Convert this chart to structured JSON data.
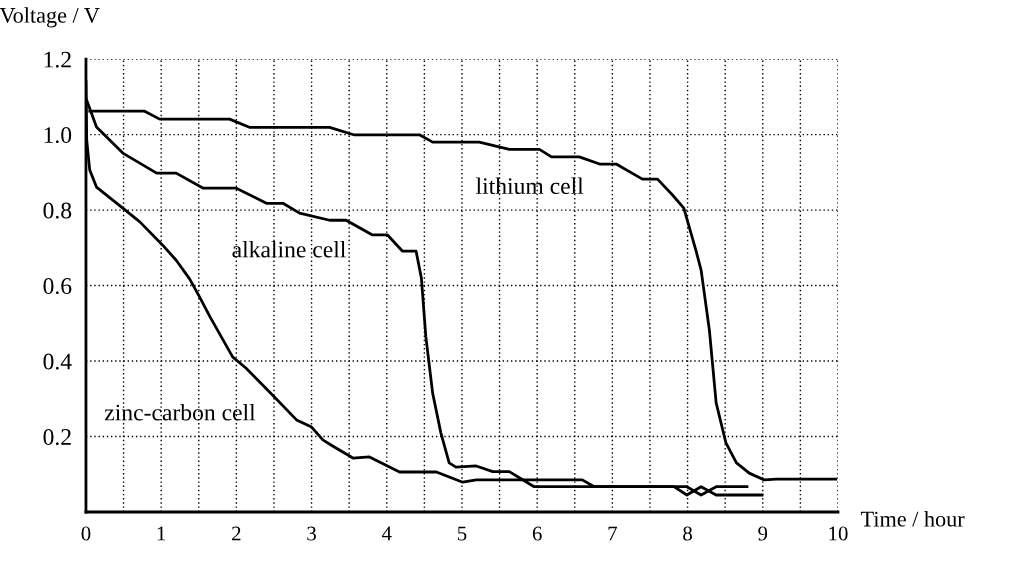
{
  "chart_data": {
    "type": "line",
    "xlabel": "Time / hour",
    "ylabel": "Voltage / V",
    "xlim": [
      0,
      10
    ],
    "ylim": [
      0,
      1.2
    ],
    "xticks": [
      0,
      {
        "value": 0.5,
        "label": null
      },
      1,
      {
        "value": 1.5,
        "label": null
      },
      2,
      {
        "value": 2.5,
        "label": null
      },
      3,
      {
        "value": 3.5,
        "label": null
      },
      4,
      {
        "value": 4.5,
        "label": null
      },
      5,
      {
        "value": 5.5,
        "label": null
      },
      6,
      {
        "value": 6.5,
        "label": null
      },
      7,
      {
        "value": 7.5,
        "label": null
      },
      8,
      {
        "value": 8.5,
        "label": null
      },
      9,
      {
        "value": 9.5,
        "label": null
      },
      10
    ],
    "yticks": [
      0.2,
      0.4,
      0.6,
      0.8,
      {
        "value": 1.0,
        "label": "1.0"
      },
      1.2
    ],
    "grid": true,
    "line_style": "solid",
    "marker": "none",
    "series": [
      {
        "color": "#000000",
        "x": [
          0.05,
          0.78,
          0.98,
          1.91,
          2.18,
          3.24,
          3.57,
          4.44,
          4.61,
          5.23,
          5.63,
          6.03,
          6.19,
          6.56,
          6.83,
          7.05,
          7.4,
          7.6,
          7.8,
          7.95,
          8.11,
          8.18,
          8.29,
          8.38,
          8.51,
          8.65,
          8.82,
          9.02,
          9.18,
          9.97
        ],
        "values": [
          1.062,
          1.062,
          1.041,
          1.041,
          1.019,
          1.019,
          0.999,
          0.999,
          0.98,
          0.98,
          0.961,
          0.961,
          0.941,
          0.941,
          0.922,
          0.922,
          0.882,
          0.882,
          0.84,
          0.805,
          0.694,
          0.641,
          0.482,
          0.289,
          0.183,
          0.13,
          0.103,
          0.085,
          0.087,
          0.087
        ]
      },
      {
        "color": "#000000",
        "x": [
          0.01,
          0.14,
          0.49,
          0.94,
          1.2,
          1.56,
          2.0,
          2.4,
          2.62,
          2.84,
          3.24,
          3.46,
          3.81,
          4.01,
          4.21,
          4.39,
          4.46,
          4.52,
          4.61,
          4.72,
          4.83,
          4.92,
          5.19,
          5.41,
          5.63,
          5.96,
          7.82,
          7.99,
          8.18,
          8.38,
          8.99
        ],
        "values": [
          1.091,
          1.02,
          0.951,
          0.898,
          0.898,
          0.858,
          0.858,
          0.818,
          0.818,
          0.792,
          0.773,
          0.773,
          0.734,
          0.734,
          0.691,
          0.691,
          0.62,
          0.464,
          0.315,
          0.209,
          0.13,
          0.119,
          0.122,
          0.107,
          0.107,
          0.067,
          0.067,
          0.045,
          0.067,
          0.045,
          0.045
        ]
      },
      {
        "color": "#000000",
        "x": [
          0.0,
          0.01,
          0.05,
          0.14,
          0.49,
          0.72,
          1.02,
          1.2,
          1.38,
          1.51,
          1.65,
          1.95,
          2.13,
          2.48,
          2.8,
          3.0,
          3.15,
          3.28,
          3.55,
          3.77,
          4.17,
          4.66,
          5.01,
          5.19,
          6.6,
          6.76,
          7.82,
          7.99,
          8.18,
          8.38,
          8.79
        ],
        "values": [
          1.14,
          0.985,
          0.906,
          0.861,
          0.805,
          0.768,
          0.707,
          0.667,
          0.617,
          0.57,
          0.517,
          0.411,
          0.381,
          0.31,
          0.244,
          0.225,
          0.191,
          0.175,
          0.143,
          0.146,
          0.106,
          0.106,
          0.079,
          0.085,
          0.085,
          0.067,
          0.067,
          0.067,
          0.045,
          0.067,
          0.067
        ]
      }
    ],
    "annotations": [
      "lithium cell",
      "alkaline cell",
      "zinc-carbon cell"
    ]
  }
}
